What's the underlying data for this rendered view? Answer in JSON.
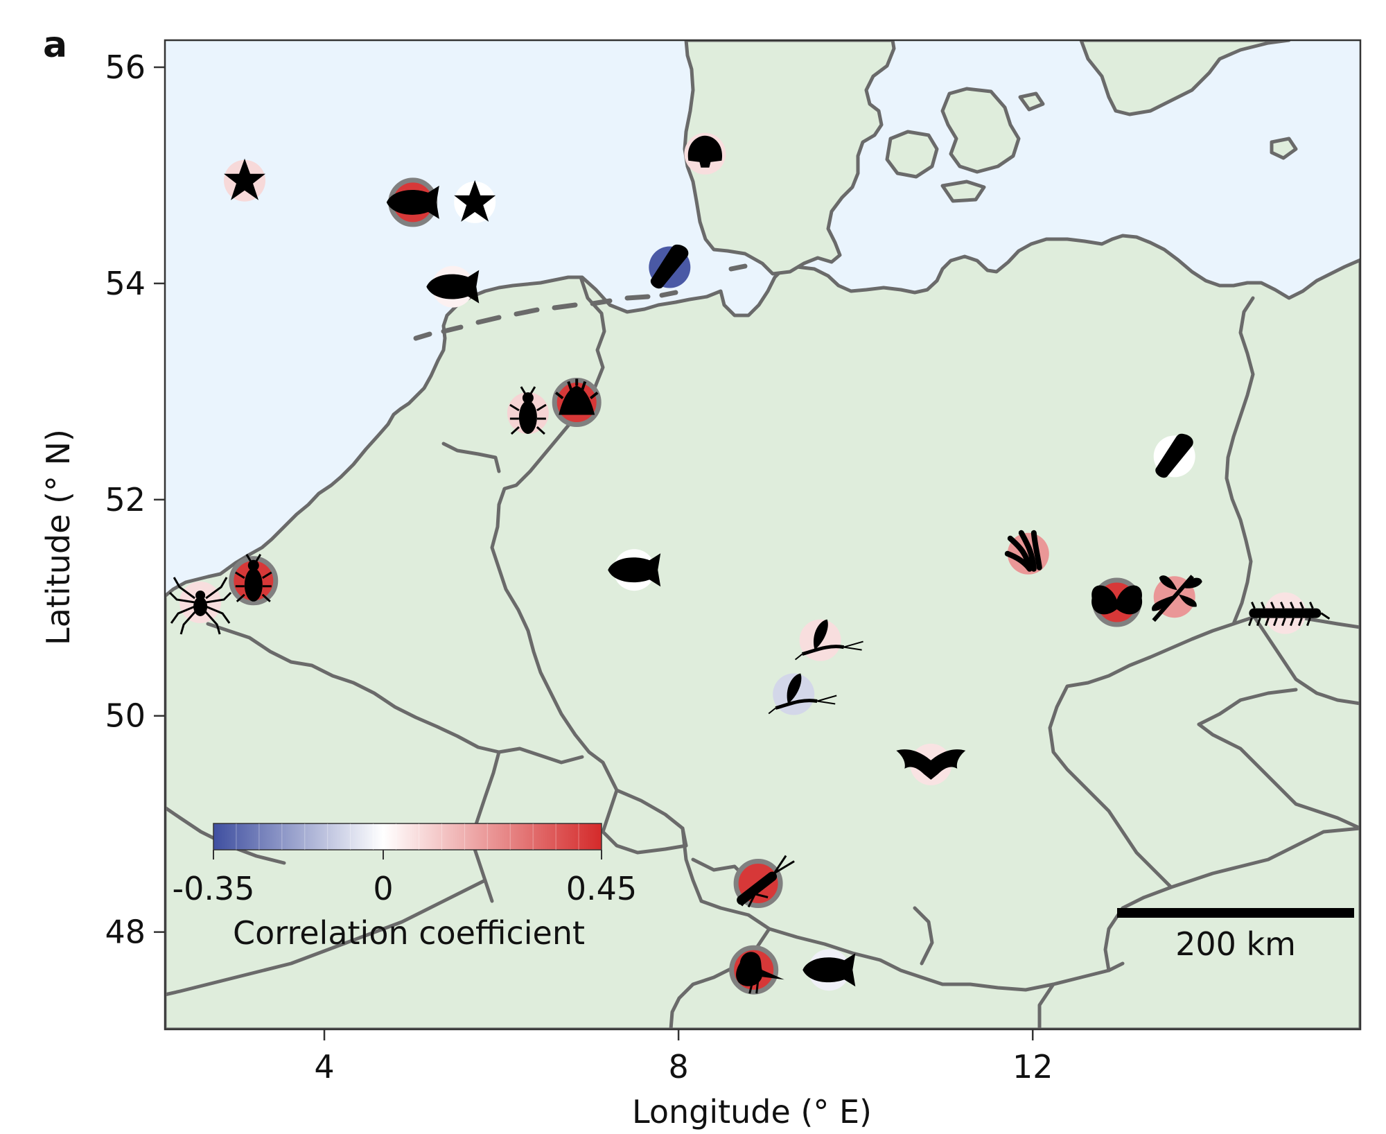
{
  "panel_label": "a",
  "chart_data": {
    "type": "map",
    "xlabel": "Longitude (° E)",
    "ylabel": "Latitude (° N)",
    "xlim": [
      2.2,
      15.7
    ],
    "ylim": [
      47.1,
      56.25
    ],
    "x_ticks": [
      4,
      8,
      12
    ],
    "y_ticks": [
      48,
      50,
      52,
      54,
      56
    ],
    "colorbar": {
      "label": "Correlation coefficient",
      "min": -0.35,
      "max": 0.45,
      "tick_labels": [
        "-0.35",
        "0",
        "0.45"
      ],
      "tick_values": [
        -0.35,
        0,
        0.45
      ],
      "low_color": "#3f4fa0",
      "mid_color": "#ffffff",
      "high_color": "#d42a2a"
    },
    "scale_bar": {
      "label": "200 km"
    },
    "colors": {
      "sea": "#eaf4fd",
      "land": "#dfeddc",
      "border": "#6a6a6a",
      "ring": "#808080"
    },
    "points": [
      {
        "taxon": "starfish",
        "lon": 3.1,
        "lat": 54.95,
        "corr": 0.08,
        "significant": false
      },
      {
        "taxon": "fish",
        "lon": 5.0,
        "lat": 54.75,
        "corr": 0.42,
        "significant": true
      },
      {
        "taxon": "starfish",
        "lon": 5.7,
        "lat": 54.75,
        "corr": 0.0,
        "significant": false
      },
      {
        "taxon": "fish",
        "lon": 5.45,
        "lat": 53.97,
        "corr": 0.03,
        "significant": false
      },
      {
        "taxon": "shell",
        "lon": 8.3,
        "lat": 55.2,
        "corr": 0.07,
        "significant": false
      },
      {
        "taxon": "mussel",
        "lon": 7.9,
        "lat": 54.15,
        "corr": -0.33,
        "significant": false
      },
      {
        "taxon": "beetle",
        "lon": 6.3,
        "lat": 52.8,
        "corr": 0.09,
        "significant": false
      },
      {
        "taxon": "plant",
        "lon": 6.85,
        "lat": 52.9,
        "corr": 0.42,
        "significant": true
      },
      {
        "taxon": "mussel",
        "lon": 13.6,
        "lat": 52.4,
        "corr": 0.0,
        "significant": false
      },
      {
        "taxon": "spider",
        "lon": 2.6,
        "lat": 51.05,
        "corr": 0.07,
        "significant": false
      },
      {
        "taxon": "beetle",
        "lon": 3.2,
        "lat": 51.25,
        "corr": 0.42,
        "significant": true
      },
      {
        "taxon": "fish",
        "lon": 7.5,
        "lat": 51.35,
        "corr": 0.0,
        "significant": false
      },
      {
        "taxon": "amphipod",
        "lon": 11.95,
        "lat": 51.5,
        "corr": 0.22,
        "significant": false
      },
      {
        "taxon": "butterfly",
        "lon": 12.95,
        "lat": 51.05,
        "corr": 0.42,
        "significant": true
      },
      {
        "taxon": "dragonfly",
        "lon": 13.6,
        "lat": 51.1,
        "corr": 0.22,
        "significant": false
      },
      {
        "taxon": "millipede",
        "lon": 14.85,
        "lat": 50.95,
        "corr": 0.06,
        "significant": false
      },
      {
        "taxon": "mayfly",
        "lon": 9.6,
        "lat": 50.7,
        "corr": 0.07,
        "significant": false
      },
      {
        "taxon": "mayfly",
        "lon": 9.3,
        "lat": 50.2,
        "corr": -0.08,
        "significant": false
      },
      {
        "taxon": "bat",
        "lon": 10.85,
        "lat": 49.55,
        "corr": 0.06,
        "significant": false
      },
      {
        "taxon": "grasshopper",
        "lon": 8.9,
        "lat": 48.45,
        "corr": 0.42,
        "significant": true
      },
      {
        "taxon": "bird",
        "lon": 8.85,
        "lat": 47.65,
        "corr": 0.42,
        "significant": true
      },
      {
        "taxon": "fish",
        "lon": 9.7,
        "lat": 47.65,
        "corr": -0.03,
        "significant": false
      }
    ]
  }
}
